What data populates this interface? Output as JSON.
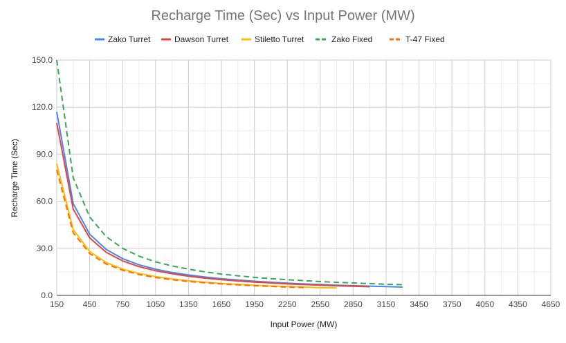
{
  "chart_data": {
    "type": "line",
    "title": "Recharge Time (Sec) vs Input Power (MW)",
    "xlabel": "Input Power (MW)",
    "ylabel": "Recharge Time (Sec)",
    "xlim": [
      150,
      4650
    ],
    "ylim": [
      0,
      150
    ],
    "x_ticks": [
      "150",
      "450",
      "750",
      "1050",
      "1350",
      "1650",
      "1950",
      "2250",
      "2550",
      "2850",
      "3150",
      "3450",
      "3750",
      "4050",
      "4350",
      "4650"
    ],
    "y_ticks": [
      "0.0",
      "30.0",
      "60.0",
      "90.0",
      "120.0",
      "150.0"
    ],
    "grid": true,
    "legend": "top",
    "x": [
      150,
      300,
      450,
      600,
      750,
      900,
      1050,
      1200,
      1350,
      1500,
      1650,
      1800,
      1950,
      2100,
      2250,
      2400,
      2550,
      2700,
      2850,
      3000,
      3150,
      3300
    ],
    "series": [
      {
        "name": "Zako Turret",
        "color": "#4285f4",
        "dashed": false,
        "values": [
          117,
          58.5,
          39,
          29.3,
          23.4,
          19.5,
          16.7,
          14.6,
          13,
          11.7,
          10.6,
          9.8,
          9,
          8.4,
          7.8,
          7.3,
          6.9,
          6.5,
          6.2,
          5.9,
          5.6,
          5.3
        ]
      },
      {
        "name": "Dawson Turret",
        "color": "#ea4335",
        "dashed": false,
        "values": [
          110,
          55,
          36.7,
          27.5,
          22,
          18.3,
          15.7,
          13.8,
          12.2,
          11,
          10,
          9.2,
          8.5,
          7.9,
          7.3,
          6.9,
          6.5,
          6.1,
          5.8,
          5.5,
          null,
          null
        ]
      },
      {
        "name": "Stiletto Turret",
        "color": "#fbbc04",
        "dashed": false,
        "values": [
          84,
          42,
          28,
          21,
          16.8,
          14,
          12,
          10.5,
          9.3,
          8.4,
          7.6,
          7,
          6.5,
          6,
          5.6,
          5.3,
          4.9,
          4.7,
          null,
          null,
          null,
          null
        ]
      },
      {
        "name": "Zako Fixed",
        "color": "#34a853",
        "dashed": true,
        "values": [
          150,
          75,
          50,
          37.5,
          30,
          25,
          21.4,
          18.8,
          16.7,
          15,
          13.6,
          12.5,
          11.5,
          10.7,
          10,
          9.4,
          8.8,
          8.3,
          7.9,
          7.5,
          7.1,
          6.8
        ]
      },
      {
        "name": "T-47 Fixed",
        "color": "#ff6d01",
        "dashed": true,
        "values": [
          80,
          40,
          26.7,
          20,
          16,
          13.3,
          11.4,
          10,
          8.9,
          8,
          7.3,
          6.7,
          6.2,
          5.7,
          5.3,
          5,
          null,
          null,
          null,
          null,
          null,
          null
        ]
      }
    ]
  }
}
